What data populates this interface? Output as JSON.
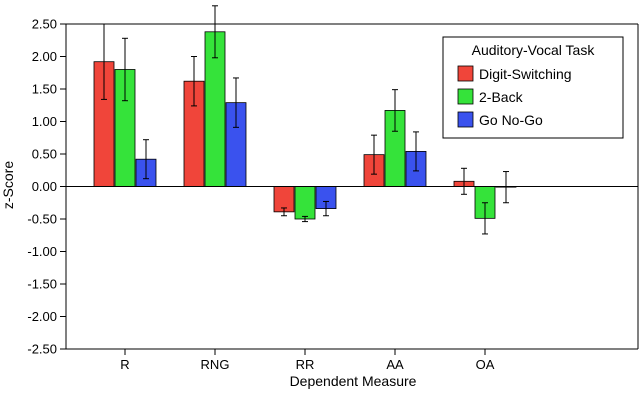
{
  "chart_data": {
    "type": "bar",
    "xlabel": "Dependent Measure",
    "ylabel": "z-Score",
    "ylim": [
      -2.5,
      2.5
    ],
    "yticks": [
      "2.50",
      "2.00",
      "1.50",
      "1.00",
      "0.50",
      "0.00",
      "-0.50",
      "-1.00",
      "-1.50",
      "-2.00",
      "-2.50"
    ],
    "ytick_values": [
      2.5,
      2.0,
      1.5,
      1.0,
      0.5,
      0.0,
      -0.5,
      -1.0,
      -1.5,
      -2.0,
      -2.5
    ],
    "categories": [
      "R",
      "RNG",
      "RR",
      "AA",
      "OA"
    ],
    "legend": {
      "title": "Auditory-Vocal Task",
      "position": "top-right"
    },
    "grid": false,
    "series": [
      {
        "name": "Digit-Switching",
        "color": "#f0453a",
        "values": [
          1.92,
          1.62,
          -0.39,
          0.49,
          0.08
        ],
        "error": [
          0.58,
          0.38,
          0.06,
          0.3,
          0.2
        ]
      },
      {
        "name": "2-Back",
        "color": "#35e33a",
        "values": [
          1.8,
          2.38,
          -0.5,
          1.17,
          -0.49
        ],
        "error": [
          0.48,
          0.4,
          0.04,
          0.32,
          0.24
        ]
      },
      {
        "name": "Go No-Go",
        "color": "#3a52ee",
        "values": [
          0.42,
          1.29,
          -0.34,
          0.54,
          -0.01
        ],
        "error": [
          0.3,
          0.38,
          0.11,
          0.3,
          0.24
        ]
      }
    ]
  }
}
